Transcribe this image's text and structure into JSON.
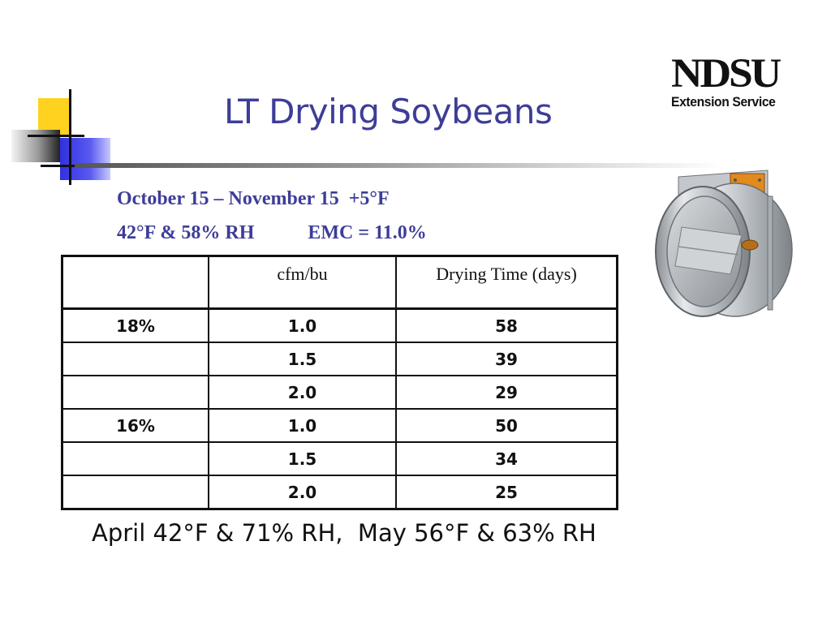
{
  "slide": {
    "title": "LT Drying Soybeans",
    "subtitle_line1": "October 15 – November 15  +5°F",
    "subtitle_line2_left": "42°F & 58% RH",
    "subtitle_line2_right": "EMC = 11.0%",
    "footer": "April 42°F & 71% RH,  May 56°F & 63% RH"
  },
  "logo": {
    "main": "NDSU",
    "sub": "Extension Service"
  },
  "table": {
    "headers": [
      "",
      "cfm/bu",
      "Drying Time (days)"
    ],
    "rows": [
      {
        "moisture": "18%",
        "cfm": "1.0",
        "days": "58"
      },
      {
        "moisture": "",
        "cfm": "1.5",
        "days": "39"
      },
      {
        "moisture": "",
        "cfm": "2.0",
        "days": "29"
      },
      {
        "moisture": "16%",
        "cfm": "1.0",
        "days": "50"
      },
      {
        "moisture": "",
        "cfm": "1.5",
        "days": "34"
      },
      {
        "moisture": "",
        "cfm": "2.0",
        "days": "25"
      }
    ]
  },
  "colors": {
    "accent_text": "#3d3d99",
    "deco_yellow": "#ffd21f",
    "deco_blue": "#3030e0"
  },
  "images": {
    "damper": "fan-damper-illustration"
  }
}
